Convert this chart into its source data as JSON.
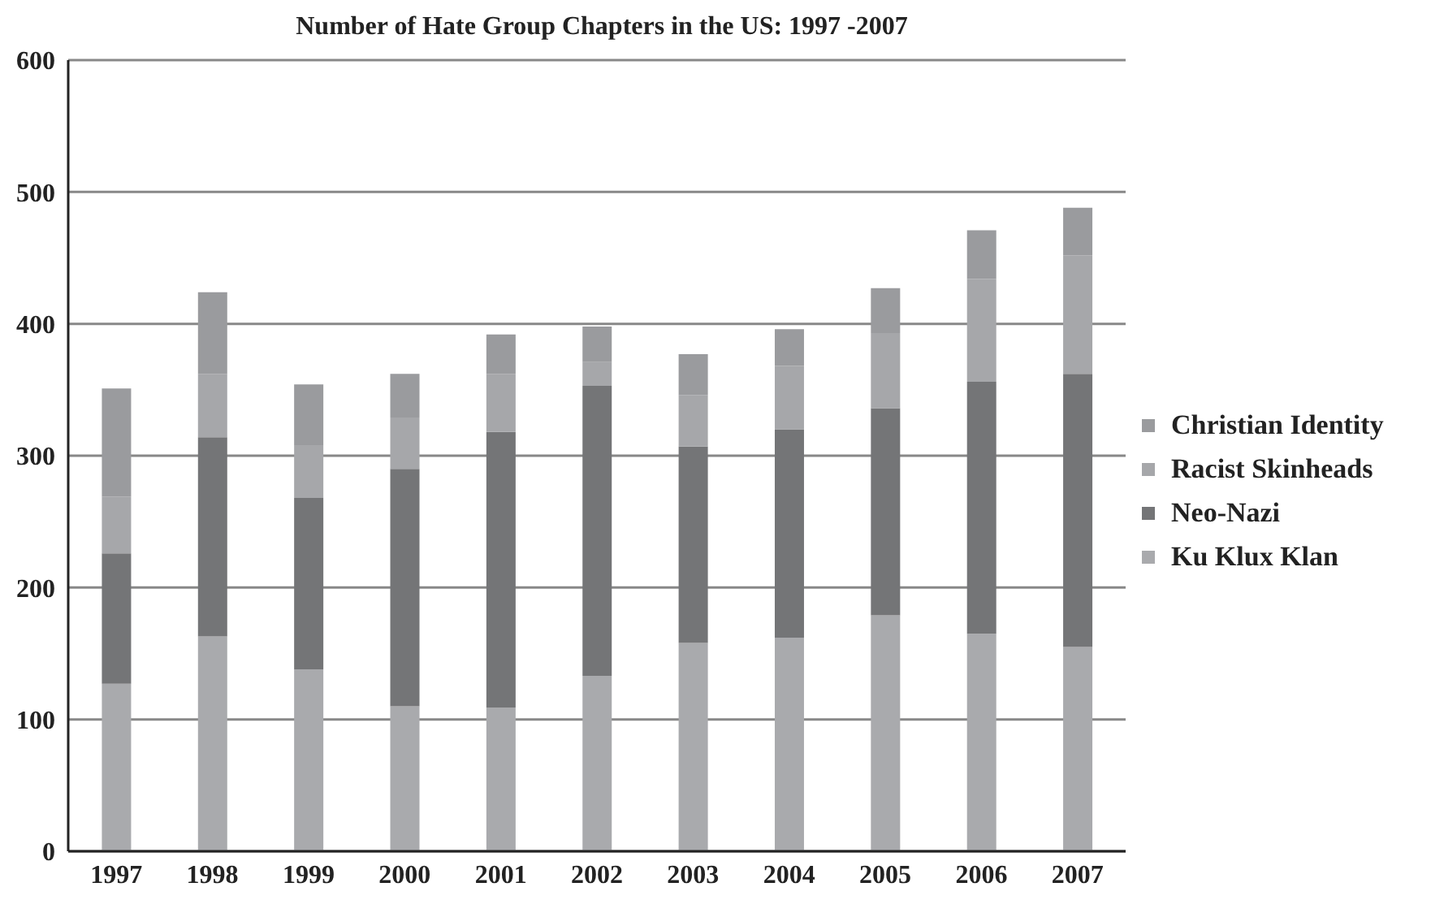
{
  "chart_data": {
    "type": "bar",
    "title": "Number of Hate Group Chapters in the US: 1997 -2007",
    "categories": [
      "1997",
      "1998",
      "1999",
      "2000",
      "2001",
      "2002",
      "2003",
      "2004",
      "2005",
      "2006",
      "2007"
    ],
    "stacked": true,
    "series": [
      {
        "name": "Ku Klux Klan",
        "color": "#a9aaad",
        "values": [
          127,
          163,
          138,
          110,
          109,
          133,
          158,
          162,
          179,
          165,
          155
        ]
      },
      {
        "name": "Neo-Nazi",
        "color": "#747577",
        "values": [
          99,
          151,
          130,
          180,
          209,
          220,
          149,
          158,
          157,
          191,
          207
        ]
      },
      {
        "name": "Racist Skinheads",
        "color": "#a6a7aa",
        "values": [
          43,
          48,
          40,
          39,
          44,
          18,
          39,
          48,
          57,
          78,
          90
        ]
      },
      {
        "name": "Christian Identity",
        "color": "#9a9b9e",
        "values": [
          82,
          62,
          46,
          33,
          30,
          27,
          31,
          28,
          34,
          37,
          36
        ]
      }
    ],
    "ylim": [
      0,
      600
    ],
    "yticks": [
      0,
      100,
      200,
      300,
      400,
      500,
      600
    ],
    "grid": "y",
    "legend": "right"
  }
}
